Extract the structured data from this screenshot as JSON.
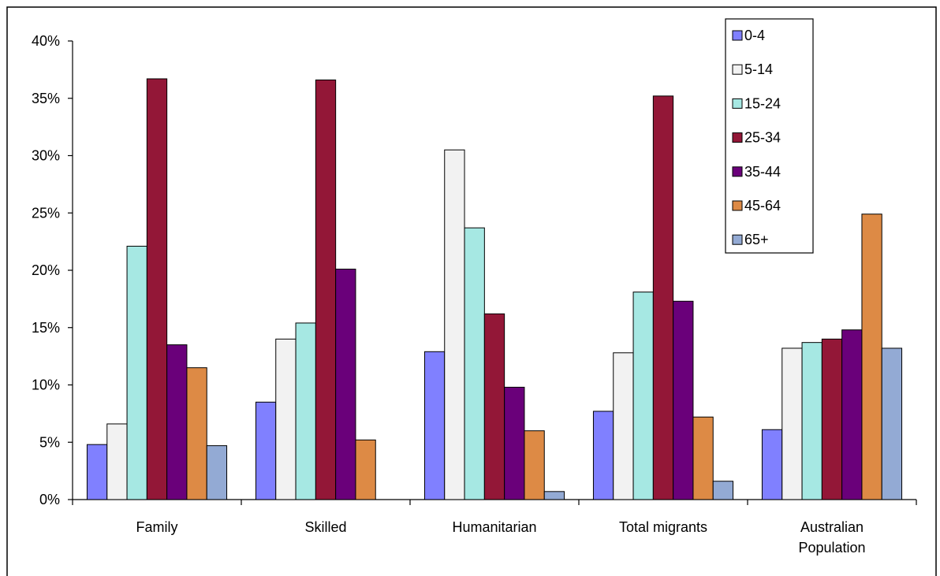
{
  "chart_data": {
    "type": "bar",
    "categories": [
      "Family",
      "Skilled",
      "Humanitarian",
      "Total migrants",
      "Australian Population"
    ],
    "category_lines": [
      [
        "Family"
      ],
      [
        "Skilled"
      ],
      [
        "Humanitarian"
      ],
      [
        "Total migrants"
      ],
      [
        "Australian",
        "Population"
      ]
    ],
    "series": [
      {
        "name": "0-4",
        "color": "#8080ff",
        "values": [
          4.8,
          8.5,
          12.9,
          7.7,
          6.1
        ]
      },
      {
        "name": "5-14",
        "color": "#f2f2f2",
        "values": [
          6.6,
          14.0,
          30.5,
          12.8,
          13.2
        ]
      },
      {
        "name": "15-24",
        "color": "#a6e8e3",
        "values": [
          22.1,
          15.4,
          23.7,
          18.1,
          13.7
        ]
      },
      {
        "name": "25-34",
        "color": "#931737",
        "values": [
          36.7,
          36.6,
          16.2,
          35.2,
          14.0
        ]
      },
      {
        "name": "35-44",
        "color": "#6a007a",
        "values": [
          13.5,
          20.1,
          9.8,
          17.3,
          14.8
        ]
      },
      {
        "name": "45-64",
        "color": "#dd8a45",
        "values": [
          11.5,
          5.2,
          6.0,
          7.2,
          24.9
        ]
      },
      {
        "name": "65+",
        "color": "#93aad4",
        "values": [
          4.7,
          0.0,
          0.7,
          1.6,
          13.2
        ]
      }
    ],
    "yticks": [
      "0%",
      "5%",
      "10%",
      "15%",
      "20%",
      "25%",
      "30%",
      "35%",
      "40%"
    ],
    "ylim": [
      0,
      40
    ],
    "title": "",
    "xlabel": "",
    "ylabel": "",
    "legend": "top-right",
    "grid": false
  }
}
